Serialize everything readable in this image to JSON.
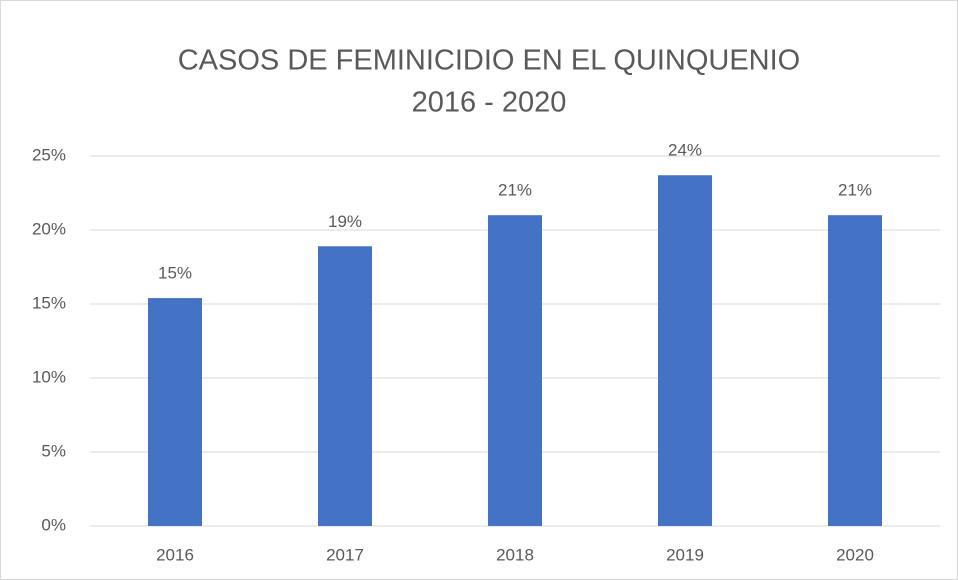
{
  "chart_data": {
    "type": "bar",
    "title": [
      "CASOS DE FEMINICIDIO EN EL QUINQUENIO",
      "2016 - 2020"
    ],
    "categories": [
      "2016",
      "2017",
      "2018",
      "2019",
      "2020"
    ],
    "values": [
      15.4,
      18.9,
      21.0,
      23.7,
      21.0
    ],
    "value_labels": [
      "15%",
      "19%",
      "21%",
      "24%",
      "21%"
    ],
    "color": "#4472c4",
    "ylim": [
      0,
      25
    ],
    "yticks": [
      {
        "value": 0,
        "label": "0%"
      },
      {
        "value": 5,
        "label": "5%"
      },
      {
        "value": 10,
        "label": "10%"
      },
      {
        "value": 15,
        "label": "15%"
      },
      {
        "value": 20,
        "label": "20%"
      },
      {
        "value": 25,
        "label": "25%"
      }
    ],
    "grid": true
  }
}
